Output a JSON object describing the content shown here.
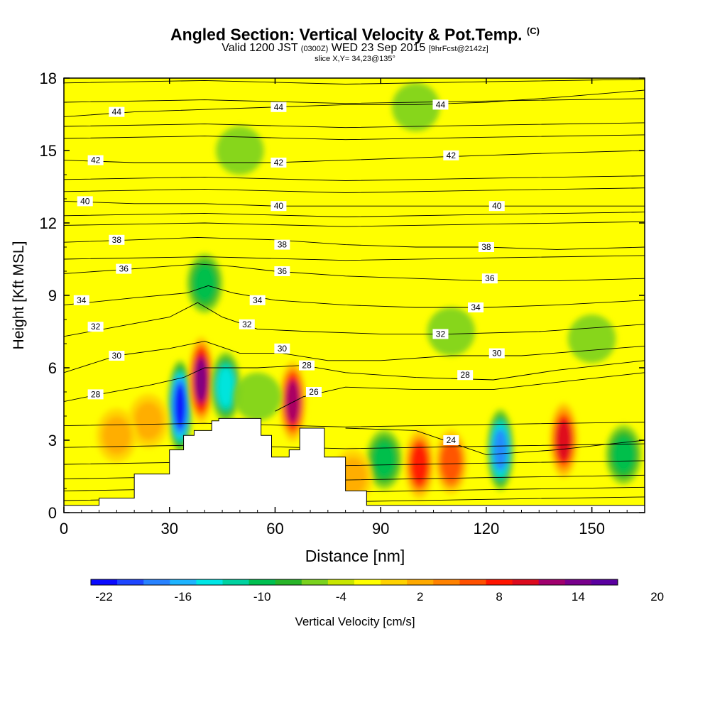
{
  "chart_data": {
    "type": "heatmap",
    "title": "Angled Section: Vertical Velocity & Pot.Temp.",
    "title_suffix": "(C)",
    "subtitle_main": "Valid 1200 JST",
    "subtitle_zulu": "(0300Z)",
    "subtitle_date": "WED 23 Sep 2015",
    "subtitle_fcst": "[9hrFcst@2142z]",
    "slice_label": "slice X,Y= 34,23@135°",
    "xlabel": "Distance [nm]",
    "ylabel": "Height [Kft MSL]",
    "xlim": [
      0,
      165
    ],
    "ylim": [
      0,
      18
    ],
    "x_ticks": [
      0,
      30,
      60,
      90,
      120,
      150
    ],
    "y_ticks": [
      0,
      3,
      6,
      9,
      12,
      15,
      18
    ],
    "colorbar": {
      "label": "Vertical Velocity [cm/s]",
      "tick_labels": [
        "-22",
        "-16",
        "-10",
        "-4",
        "2",
        "8",
        "14",
        "20"
      ],
      "colors": [
        "#0a0aff",
        "#1e46ff",
        "#2882ff",
        "#1eb4ff",
        "#00e6e6",
        "#00d2a0",
        "#00c050",
        "#28b428",
        "#7ad21e",
        "#c8e600",
        "#ffff00",
        "#ffd200",
        "#ffaa00",
        "#ff8200",
        "#ff5000",
        "#ff1400",
        "#dc0a1e",
        "#a0006e",
        "#78008c",
        "#5a00a0"
      ]
    },
    "terrain_kft": [
      [
        0,
        0.3
      ],
      [
        10,
        0.6
      ],
      [
        20,
        1.6
      ],
      [
        30,
        2.6
      ],
      [
        34,
        3.2
      ],
      [
        37,
        3.4
      ],
      [
        42,
        3.8
      ],
      [
        44,
        3.9
      ],
      [
        52,
        3.9
      ],
      [
        56,
        3.2
      ],
      [
        59,
        2.3
      ],
      [
        62,
        2.3
      ],
      [
        64,
        2.6
      ],
      [
        67,
        3.5
      ],
      [
        70,
        3.5
      ],
      [
        74,
        2.3
      ],
      [
        80,
        0.9
      ],
      [
        86,
        0.3
      ],
      [
        165,
        0.3
      ]
    ],
    "velocity_cells": [
      {
        "x": 33,
        "y": 4.4,
        "value": -20
      },
      {
        "x": 39,
        "y": 5.5,
        "value": 18
      },
      {
        "x": 46,
        "y": 5.2,
        "value": -12
      },
      {
        "x": 65,
        "y": 4.6,
        "value": 16
      },
      {
        "x": 24,
        "y": 3.8,
        "value": 6
      },
      {
        "x": 15,
        "y": 3.2,
        "value": 6
      },
      {
        "x": 55,
        "y": 4.8,
        "value": -4
      },
      {
        "x": 91,
        "y": 2.2,
        "value": -8
      },
      {
        "x": 101,
        "y": 2.0,
        "value": 12
      },
      {
        "x": 110,
        "y": 2.1,
        "value": 10
      },
      {
        "x": 124,
        "y": 2.6,
        "value": -16
      },
      {
        "x": 142,
        "y": 3.0,
        "value": 14
      },
      {
        "x": 159,
        "y": 2.4,
        "value": -8
      },
      {
        "x": 82,
        "y": 1.5,
        "value": 6
      },
      {
        "x": 40,
        "y": 9.5,
        "value": -8
      },
      {
        "x": 110,
        "y": 7.5,
        "value": -4
      },
      {
        "x": 150,
        "y": 7.2,
        "value": -4
      },
      {
        "x": 50,
        "y": 15.0,
        "value": -4
      },
      {
        "x": 100,
        "y": 16.8,
        "value": -4
      },
      {
        "x": 150,
        "y": 14.0,
        "value": 2
      },
      {
        "x": 20,
        "y": 15.5,
        "value": 2
      }
    ],
    "isentropes": [
      {
        "theta": "24",
        "label_x": 110,
        "label_y": 3.0,
        "points": [
          [
            80,
            3.5
          ],
          [
            100,
            3.4
          ],
          [
            112,
            2.8
          ],
          [
            120,
            2.4
          ],
          [
            140,
            2.6
          ],
          [
            165,
            3.0
          ]
        ]
      },
      {
        "theta": "26",
        "label_x": 71,
        "label_y": 5.0,
        "points": [
          [
            60,
            4.2
          ],
          [
            68,
            4.8
          ],
          [
            80,
            5.2
          ],
          [
            100,
            5.1
          ],
          [
            122,
            5.1
          ],
          [
            140,
            5.4
          ],
          [
            165,
            5.8
          ]
        ]
      },
      {
        "theta": "28",
        "label_x": 9,
        "label_y": 4.9,
        "points": [
          [
            0,
            4.6
          ],
          [
            10,
            4.9
          ],
          [
            25,
            5.3
          ],
          [
            34,
            5.6
          ],
          [
            40,
            6.0
          ],
          [
            55,
            6.0
          ],
          [
            68,
            6.1
          ],
          [
            80,
            5.8
          ],
          [
            100,
            5.6
          ],
          [
            122,
            5.5
          ],
          [
            140,
            5.9
          ],
          [
            165,
            6.3
          ]
        ]
      },
      {
        "theta": "28",
        "label_x": 69,
        "label_y": 6.1,
        "points": []
      },
      {
        "theta": "28",
        "label_x": 114,
        "label_y": 5.7,
        "points": []
      },
      {
        "theta": "30",
        "label_x": 15,
        "label_y": 6.5,
        "points": [
          [
            0,
            5.8
          ],
          [
            15,
            6.5
          ],
          [
            30,
            6.8
          ],
          [
            40,
            7.1
          ],
          [
            50,
            6.6
          ],
          [
            62,
            6.6
          ],
          [
            75,
            6.3
          ],
          [
            90,
            6.3
          ],
          [
            110,
            6.5
          ],
          [
            130,
            6.5
          ],
          [
            165,
            6.9
          ]
        ]
      },
      {
        "theta": "30",
        "label_x": 62,
        "label_y": 6.8,
        "points": []
      },
      {
        "theta": "30",
        "label_x": 123,
        "label_y": 6.6,
        "points": []
      },
      {
        "theta": "32",
        "label_x": 9,
        "label_y": 7.7,
        "points": [
          [
            0,
            7.3
          ],
          [
            15,
            7.7
          ],
          [
            30,
            8.1
          ],
          [
            38,
            8.7
          ],
          [
            45,
            8.1
          ],
          [
            55,
            7.6
          ],
          [
            70,
            7.5
          ],
          [
            90,
            7.4
          ],
          [
            110,
            7.4
          ],
          [
            135,
            7.5
          ],
          [
            165,
            7.8
          ]
        ]
      },
      {
        "theta": "32",
        "label_x": 52,
        "label_y": 7.8,
        "points": []
      },
      {
        "theta": "32",
        "label_x": 107,
        "label_y": 7.4,
        "points": []
      },
      {
        "theta": "34",
        "label_x": 5,
        "label_y": 8.8,
        "points": [
          [
            0,
            8.6
          ],
          [
            20,
            8.9
          ],
          [
            35,
            9.1
          ],
          [
            41,
            9.4
          ],
          [
            48,
            9.1
          ],
          [
            60,
            8.8
          ],
          [
            80,
            8.6
          ],
          [
            100,
            8.5
          ],
          [
            120,
            8.5
          ],
          [
            140,
            8.6
          ],
          [
            165,
            8.8
          ]
        ]
      },
      {
        "theta": "34",
        "label_x": 55,
        "label_y": 8.8,
        "points": []
      },
      {
        "theta": "34",
        "label_x": 117,
        "label_y": 8.5,
        "points": []
      },
      {
        "theta": "36",
        "label_x": 17,
        "label_y": 10.1,
        "points": [
          [
            0,
            9.9
          ],
          [
            20,
            10.1
          ],
          [
            38,
            10.3
          ],
          [
            48,
            10.2
          ],
          [
            60,
            10.0
          ],
          [
            80,
            9.8
          ],
          [
            100,
            9.7
          ],
          [
            120,
            9.6
          ],
          [
            140,
            9.6
          ],
          [
            165,
            9.7
          ]
        ]
      },
      {
        "theta": "36",
        "label_x": 62,
        "label_y": 10.0,
        "points": []
      },
      {
        "theta": "36",
        "label_x": 121,
        "label_y": 9.7,
        "points": []
      },
      {
        "theta": "38",
        "label_x": 15,
        "label_y": 11.3,
        "points": [
          [
            0,
            11.2
          ],
          [
            20,
            11.3
          ],
          [
            38,
            11.4
          ],
          [
            60,
            11.3
          ],
          [
            80,
            11.1
          ],
          [
            100,
            11.0
          ],
          [
            120,
            11.0
          ],
          [
            140,
            10.9
          ],
          [
            165,
            11.0
          ]
        ]
      },
      {
        "theta": "38",
        "label_x": 62,
        "label_y": 11.1,
        "points": []
      },
      {
        "theta": "38",
        "label_x": 120,
        "label_y": 11.0,
        "points": []
      },
      {
        "theta": "40",
        "label_x": 6,
        "label_y": 12.9,
        "points": [
          [
            0,
            12.9
          ],
          [
            20,
            12.8
          ],
          [
            40,
            12.8
          ],
          [
            60,
            12.7
          ],
          [
            80,
            12.7
          ],
          [
            100,
            12.7
          ],
          [
            120,
            12.7
          ],
          [
            140,
            12.7
          ],
          [
            165,
            12.7
          ]
        ]
      },
      {
        "theta": "40",
        "label_x": 61,
        "label_y": 12.7,
        "points": []
      },
      {
        "theta": "40",
        "label_x": 123,
        "label_y": 12.7,
        "points": []
      },
      {
        "theta": "42",
        "label_x": 9,
        "label_y": 14.6,
        "points": [
          [
            0,
            14.6
          ],
          [
            20,
            14.5
          ],
          [
            40,
            14.5
          ],
          [
            60,
            14.5
          ],
          [
            80,
            14.6
          ],
          [
            100,
            14.7
          ],
          [
            120,
            14.8
          ],
          [
            140,
            14.9
          ],
          [
            165,
            15.0
          ]
        ]
      },
      {
        "theta": "42",
        "label_x": 61,
        "label_y": 14.5,
        "points": []
      },
      {
        "theta": "42",
        "label_x": 110,
        "label_y": 14.8,
        "points": []
      },
      {
        "theta": "44",
        "label_x": 15,
        "label_y": 16.6,
        "points": [
          [
            0,
            16.4
          ],
          [
            20,
            16.6
          ],
          [
            40,
            16.7
          ],
          [
            60,
            16.8
          ],
          [
            80,
            16.9
          ],
          [
            100,
            16.9
          ],
          [
            120,
            17.0
          ],
          [
            140,
            17.2
          ],
          [
            165,
            17.5
          ]
        ]
      },
      {
        "theta": "44",
        "label_x": 61,
        "label_y": 16.8,
        "points": []
      },
      {
        "theta": "44",
        "label_x": 107,
        "label_y": 16.9,
        "points": []
      }
    ],
    "flat_isentropes_kft": [
      0.5,
      0.9,
      1.4,
      2.0,
      2.7,
      3.6,
      10.5,
      11.9,
      12.3,
      13.3,
      13.8,
      15.5,
      16.0,
      17.0,
      17.8
    ]
  }
}
